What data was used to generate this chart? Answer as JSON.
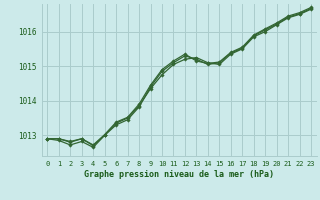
{
  "background_color": "#cceaea",
  "grid_color": "#aacccc",
  "line_color": "#336633",
  "marker_color": "#336633",
  "title": "Graphe pression niveau de la mer (hPa)",
  "title_color": "#1a5c1a",
  "xlim": [
    -0.5,
    23.5
  ],
  "ylim": [
    1012.4,
    1016.8
  ],
  "yticks": [
    1013,
    1014,
    1015,
    1016
  ],
  "xticks": [
    0,
    1,
    2,
    3,
    4,
    5,
    6,
    7,
    8,
    9,
    10,
    11,
    12,
    13,
    14,
    15,
    16,
    17,
    18,
    19,
    20,
    21,
    22,
    23
  ],
  "series1": [
    1012.9,
    1012.9,
    1012.8,
    1012.9,
    1012.7,
    1013.0,
    1013.35,
    1013.5,
    1013.85,
    1014.35,
    1014.75,
    1015.05,
    1015.2,
    1015.25,
    1015.1,
    1015.05,
    1015.35,
    1015.5,
    1015.85,
    1016.0,
    1016.2,
    1016.4,
    1016.5,
    1016.65
  ],
  "series2": [
    1012.9,
    1012.85,
    1012.72,
    1012.82,
    1012.65,
    1013.0,
    1013.3,
    1013.45,
    1013.82,
    1014.4,
    1014.85,
    1015.1,
    1015.3,
    1015.2,
    1015.05,
    1015.1,
    1015.38,
    1015.52,
    1015.88,
    1016.05,
    1016.22,
    1016.42,
    1016.52,
    1016.67
  ],
  "series3": [
    1012.9,
    1012.9,
    1012.82,
    1012.9,
    1012.72,
    1013.02,
    1013.38,
    1013.52,
    1013.9,
    1014.45,
    1014.9,
    1015.15,
    1015.35,
    1015.15,
    1015.08,
    1015.12,
    1015.4,
    1015.55,
    1015.9,
    1016.08,
    1016.25,
    1016.45,
    1016.55,
    1016.7
  ]
}
